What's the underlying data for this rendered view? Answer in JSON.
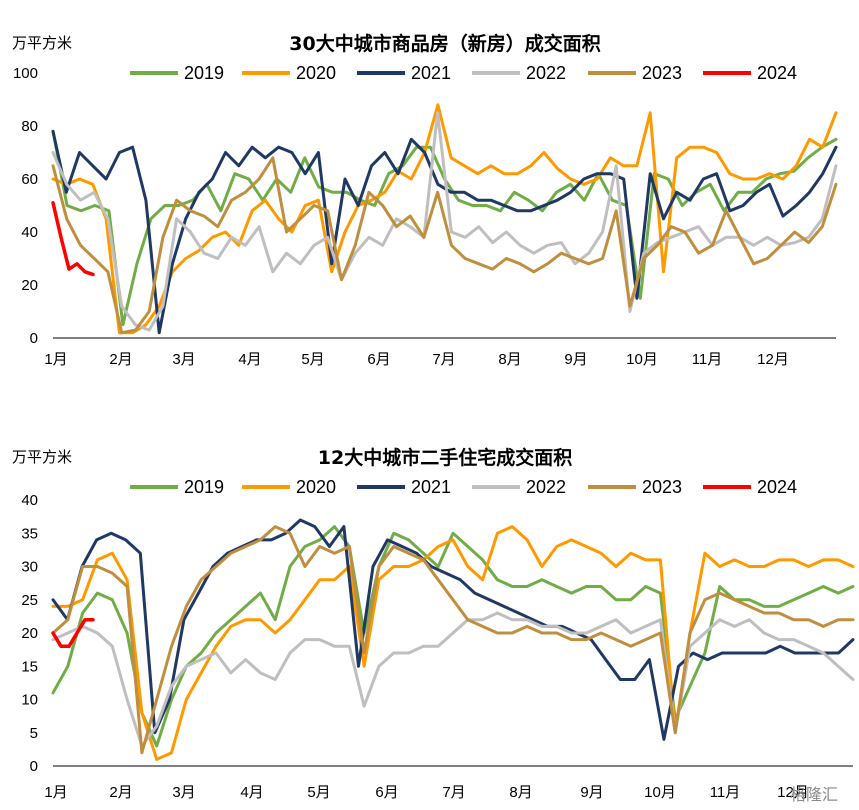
{
  "chart_data": [
    {
      "type": "line",
      "title": "30大中城市商品房（新房）成交面积",
      "ylabel": "万平方米",
      "ylim": [
        0,
        100
      ],
      "yticks": [
        "0",
        "20",
        "40",
        "60",
        "80",
        "100"
      ],
      "xticks": [
        "1月",
        "2月",
        "3月",
        "4月",
        "5月",
        "6月",
        "7月",
        "8月",
        "9月",
        "10月",
        "11月",
        "12月"
      ],
      "legend_position": "top",
      "grid": false,
      "series": [
        {
          "name": "2019",
          "color": "#70ad47",
          "values": [
            78,
            50,
            48,
            50,
            48,
            5,
            28,
            45,
            50,
            50,
            52,
            58,
            48,
            62,
            60,
            52,
            60,
            55,
            68,
            57,
            55,
            55,
            52,
            50,
            62,
            65,
            72,
            72,
            60,
            52,
            50,
            50,
            48,
            55,
            52,
            48,
            55,
            58,
            52,
            62,
            52,
            50,
            15,
            62,
            60,
            50,
            55,
            58,
            48,
            55,
            55,
            60,
            62,
            63,
            68,
            72,
            75
          ]
        },
        {
          "name": "2020",
          "color": "#ff9900",
          "values": [
            60,
            58,
            60,
            58,
            45,
            2,
            2,
            5,
            12,
            25,
            30,
            33,
            38,
            40,
            35,
            48,
            52,
            45,
            40,
            50,
            52,
            25,
            40,
            50,
            52,
            55,
            63,
            60,
            70,
            88,
            68,
            65,
            62,
            65,
            62,
            62,
            65,
            70,
            64,
            60,
            58,
            60,
            68,
            65,
            65,
            85,
            25,
            68,
            72,
            72,
            70,
            62,
            60,
            60,
            62,
            60,
            65,
            75,
            72,
            85
          ]
        },
        {
          "name": "2021",
          "color": "#1f3864",
          "values": [
            78,
            55,
            70,
            65,
            60,
            70,
            72,
            52,
            2,
            28,
            45,
            55,
            60,
            70,
            65,
            72,
            68,
            72,
            70,
            62,
            70,
            28,
            60,
            50,
            65,
            70,
            62,
            75,
            70,
            58,
            55,
            55,
            52,
            52,
            50,
            48,
            48,
            50,
            52,
            55,
            60,
            62,
            62,
            60,
            15,
            62,
            45,
            55,
            52,
            60,
            62,
            48,
            50,
            55,
            58,
            46,
            50,
            55,
            62,
            72
          ]
        },
        {
          "name": "2022",
          "color": "#bfbfbf",
          "values": [
            70,
            58,
            52,
            55,
            45,
            12,
            5,
            3,
            12,
            45,
            40,
            32,
            30,
            38,
            35,
            42,
            25,
            32,
            28,
            35,
            38,
            22,
            32,
            38,
            35,
            45,
            42,
            38,
            85,
            40,
            38,
            42,
            36,
            40,
            35,
            32,
            35,
            36,
            28,
            32,
            40,
            65,
            10,
            32,
            36,
            38,
            40,
            42,
            35,
            38,
            38,
            35,
            38,
            35,
            36,
            38,
            45,
            65
          ]
        },
        {
          "name": "2023",
          "color": "#bf8f3f",
          "values": [
            65,
            45,
            35,
            30,
            25,
            2,
            3,
            10,
            38,
            52,
            48,
            46,
            42,
            52,
            55,
            60,
            68,
            40,
            45,
            50,
            48,
            22,
            35,
            55,
            50,
            42,
            46,
            38,
            55,
            35,
            30,
            28,
            26,
            30,
            28,
            25,
            28,
            32,
            30,
            28,
            30,
            48,
            12,
            30,
            35,
            42,
            40,
            32,
            35,
            48,
            38,
            28,
            30,
            35,
            40,
            36,
            42,
            58
          ]
        },
        {
          "name": "2024",
          "color": "#ff0000",
          "values": [
            51,
            38,
            26,
            28,
            25,
            24
          ]
        }
      ]
    },
    {
      "type": "line",
      "title": "12大中城市二手住宅成交面积",
      "ylabel": "万平方米",
      "ylim": [
        0,
        40
      ],
      "yticks": [
        "0",
        "5",
        "10",
        "15",
        "20",
        "25",
        "30",
        "35",
        "40"
      ],
      "xticks": [
        "1月",
        "2月",
        "3月",
        "4月",
        "5月",
        "6月",
        "7月",
        "8月",
        "9月",
        "10月",
        "11月",
        "12月"
      ],
      "legend_position": "top",
      "grid": false,
      "series": [
        {
          "name": "2019",
          "color": "#70ad47",
          "values": [
            11,
            15,
            23,
            26,
            25,
            20,
            8,
            3,
            10,
            15,
            17,
            20,
            22,
            24,
            26,
            22,
            30,
            33,
            34,
            36,
            33,
            20,
            30,
            35,
            34,
            32,
            30,
            35,
            33,
            31,
            28,
            27,
            27,
            28,
            27,
            26,
            27,
            27,
            25,
            25,
            27,
            26,
            7,
            12,
            17,
            27,
            25,
            25,
            24,
            24,
            25,
            26,
            27,
            26,
            27
          ]
        },
        {
          "name": "2020",
          "color": "#ff9900",
          "values": [
            24,
            24,
            25,
            31,
            32,
            28,
            8,
            1,
            2,
            10,
            14,
            18,
            21,
            22,
            22,
            20,
            22,
            25,
            28,
            28,
            30,
            15,
            28,
            30,
            30,
            31,
            33,
            34,
            30,
            28,
            35,
            36,
            34,
            30,
            33,
            34,
            33,
            32,
            30,
            32,
            31,
            31,
            5,
            20,
            32,
            30,
            31,
            30,
            30,
            31,
            31,
            30,
            31,
            31,
            30
          ]
        },
        {
          "name": "2021",
          "color": "#1f3864",
          "values": [
            25,
            22,
            30,
            34,
            35,
            34,
            32,
            5,
            10,
            22,
            26,
            30,
            32,
            33,
            34,
            34,
            35,
            37,
            36,
            33,
            36,
            15,
            30,
            34,
            33,
            32,
            30,
            29,
            28,
            26,
            25,
            24,
            23,
            22,
            21,
            21,
            20,
            19,
            16,
            13,
            13,
            16,
            4,
            15,
            17,
            16,
            17,
            17,
            17,
            17,
            18,
            17,
            17,
            17,
            17,
            19
          ]
        },
        {
          "name": "2022",
          "color": "#bfbfbf",
          "values": [
            19,
            20,
            21,
            20,
            18,
            10,
            3,
            6,
            12,
            15,
            16,
            17,
            14,
            16,
            14,
            13,
            17,
            19,
            19,
            18,
            18,
            9,
            15,
            17,
            17,
            18,
            18,
            20,
            22,
            22,
            23,
            22,
            22,
            21,
            21,
            20,
            20,
            21,
            22,
            20,
            21,
            22,
            5,
            18,
            20,
            22,
            21,
            22,
            20,
            19,
            19,
            18,
            17,
            15,
            13
          ]
        },
        {
          "name": "2023",
          "color": "#bf8f3f",
          "values": [
            20,
            22,
            30,
            30,
            29,
            27,
            2,
            10,
            18,
            24,
            28,
            30,
            32,
            33,
            34,
            36,
            35,
            30,
            33,
            32,
            33,
            17,
            30,
            33,
            32,
            31,
            28,
            25,
            22,
            21,
            20,
            20,
            21,
            20,
            20,
            19,
            19,
            20,
            19,
            18,
            19,
            20,
            5,
            20,
            25,
            26,
            25,
            24,
            23,
            23,
            22,
            22,
            21,
            22,
            22
          ]
        },
        {
          "name": "2024",
          "color": "#ff0000",
          "values": [
            20,
            18,
            18,
            20,
            22,
            22
          ]
        }
      ]
    }
  ],
  "watermark": "格隆汇"
}
